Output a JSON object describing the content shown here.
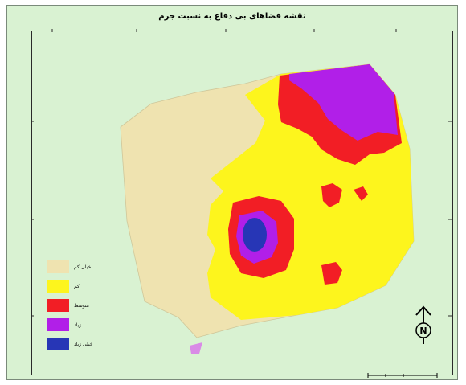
{
  "title": "نقشه فضاهای بی دفاع به نسبت جرم",
  "legend": [
    {
      "label": "خیلی کم",
      "color": "#efe3b0"
    },
    {
      "label": "کم",
      "color": "#fdf51d"
    },
    {
      "label": "متوسط",
      "color": "#f21e25"
    },
    {
      "label": "زیاد",
      "color": "#b11fe8"
    },
    {
      "label": "خیلی زیاد",
      "color": "#2736b6"
    }
  ],
  "frame_background": "#d9f2d2",
  "north_arrow": {
    "icon": "north-arrow-icon",
    "label": "N"
  },
  "scale_bar": {
    "icon": "scale-bar-icon"
  }
}
